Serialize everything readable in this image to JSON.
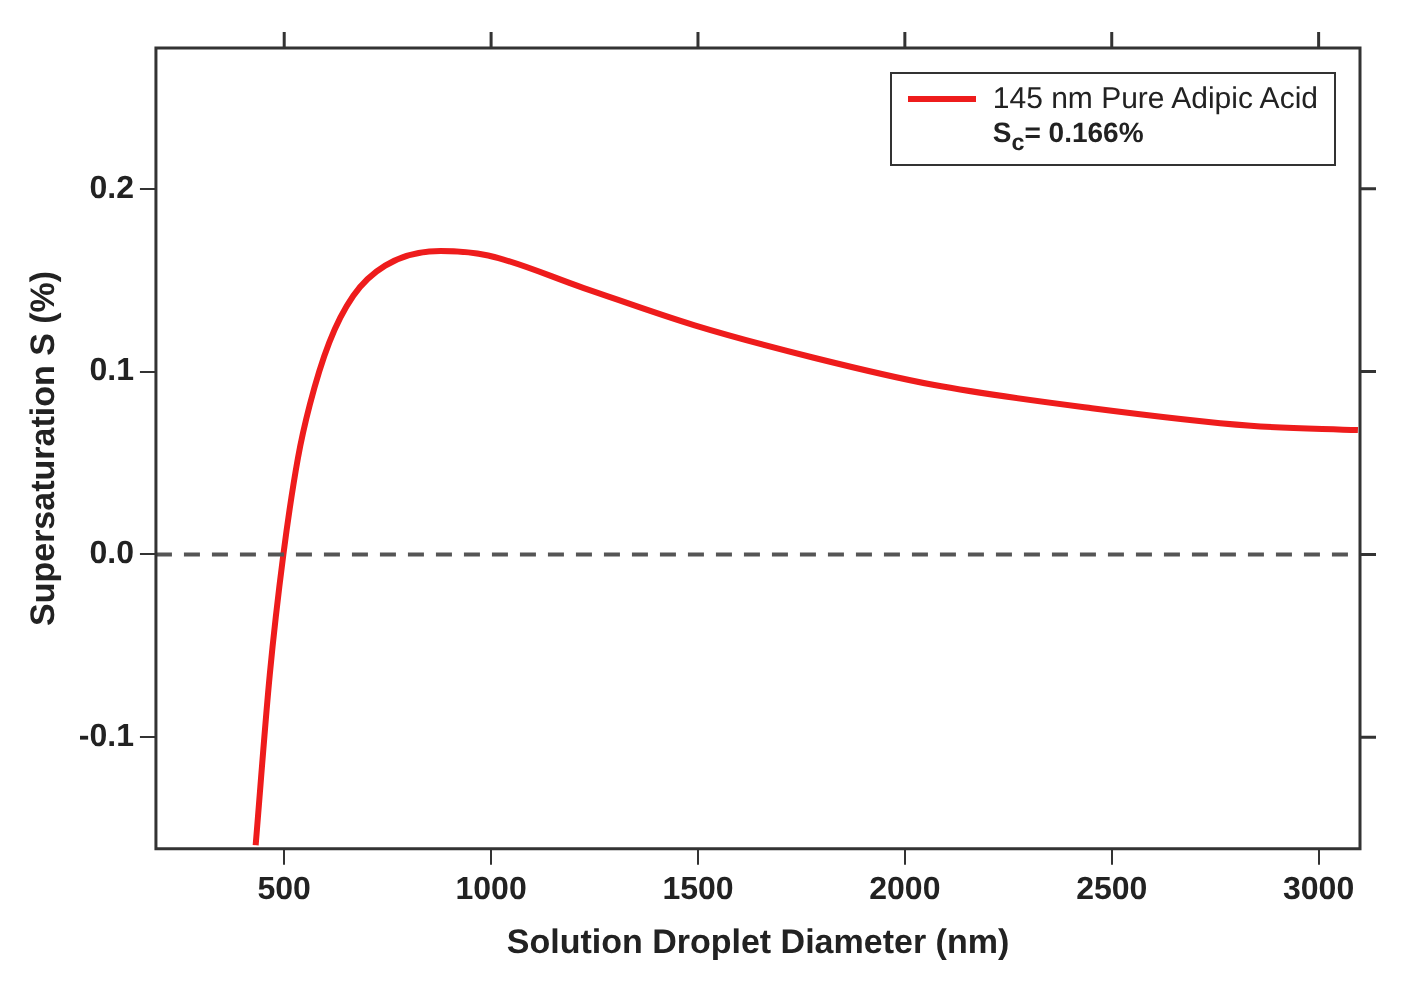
{
  "chart_data": {
    "type": "line",
    "xlabel": "Solution Droplet Diameter (nm)",
    "ylabel": "Supersaturation S (%)",
    "x": [
      431,
      465,
      498,
      533,
      562,
      609,
      667,
      744,
      878,
      993,
      1224,
      1492,
      1780,
      2068,
      2452,
      2836,
      3095
    ],
    "series": [
      {
        "name": "145 nm Pure Adipic Acid",
        "color": "#ee1c1c",
        "values": [
          -0.159,
          -0.066,
          0,
          0.0525,
          0.082,
          0.116,
          0.1415,
          0.158,
          0.166,
          0.1635,
          0.1457,
          0.1253,
          0.1076,
          0.0928,
          0.08,
          0.0704,
          0.068
        ]
      }
    ],
    "xlim": [
      190,
      3100
    ],
    "xticks": [
      500,
      1000,
      1500,
      2000,
      2500,
      3000
    ],
    "ylim": [
      -0.161,
      0.277
    ],
    "yticks": [
      {
        "value": -0.1,
        "label": "-0.1"
      },
      {
        "value": 0,
        "label": "0.0"
      },
      {
        "value": 0.1,
        "label": "0.1"
      },
      {
        "value": 0.2,
        "label": "0.2"
      }
    ],
    "ref_lines": [
      {
        "axis": "y",
        "value": 0,
        "color": "#555555",
        "line_style": "dashed"
      }
    ],
    "annotations": [
      "S$_{c}$= 0.166%"
    ],
    "legend": "top right",
    "grid": false,
    "marker": "none",
    "line_style": "solid"
  }
}
